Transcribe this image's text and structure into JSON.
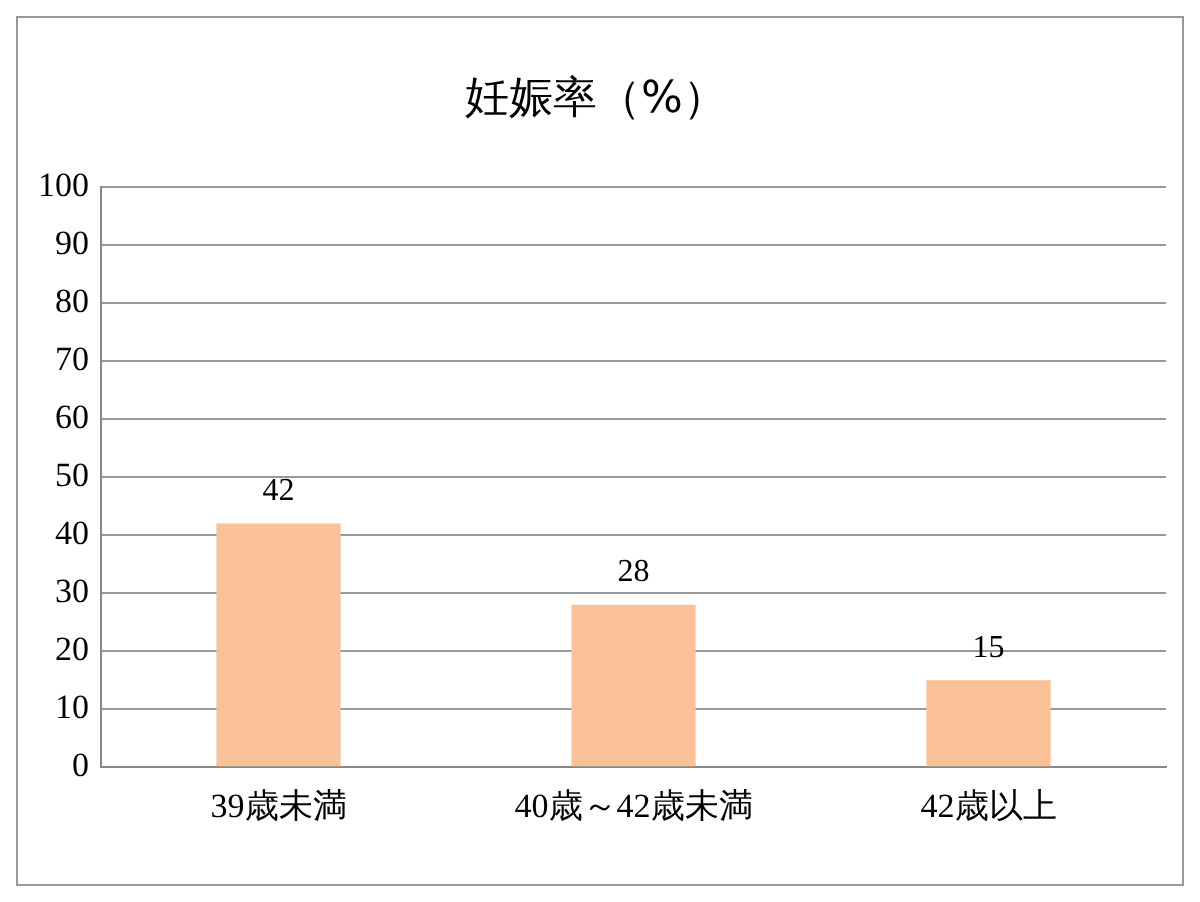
{
  "chart_data": {
    "type": "bar",
    "title": "妊娠率（%）",
    "categories": [
      "39歳未満",
      "40歳～42歳未満",
      "42歳以上"
    ],
    "values": [
      42,
      28,
      15
    ],
    "color": "#fbc29a",
    "ylim": [
      0,
      100
    ],
    "yticks": [
      0,
      10,
      20,
      30,
      40,
      50,
      60,
      70,
      80,
      90,
      100
    ],
    "grid": "y",
    "data_labels": true
  }
}
